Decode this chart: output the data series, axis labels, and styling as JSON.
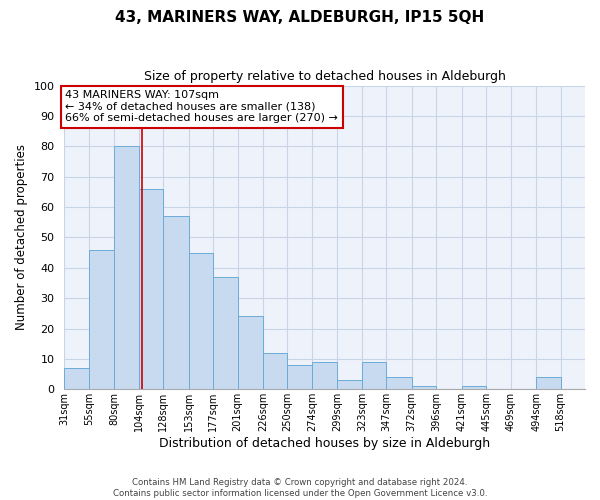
{
  "title": "43, MARINERS WAY, ALDEBURGH, IP15 5QH",
  "subtitle": "Size of property relative to detached houses in Aldeburgh",
  "xlabel": "Distribution of detached houses by size in Aldeburgh",
  "ylabel": "Number of detached properties",
  "footer_line1": "Contains HM Land Registry data © Crown copyright and database right 2024.",
  "footer_line2": "Contains public sector information licensed under the Open Government Licence v3.0.",
  "bin_labels": [
    "31sqm",
    "55sqm",
    "80sqm",
    "104sqm",
    "128sqm",
    "153sqm",
    "177sqm",
    "201sqm",
    "226sqm",
    "250sqm",
    "274sqm",
    "299sqm",
    "323sqm",
    "347sqm",
    "372sqm",
    "396sqm",
    "421sqm",
    "445sqm",
    "469sqm",
    "494sqm",
    "518sqm"
  ],
  "bar_heights": [
    7,
    46,
    80,
    66,
    57,
    45,
    37,
    24,
    12,
    8,
    9,
    3,
    9,
    4,
    1,
    0,
    1,
    0,
    0,
    4,
    0
  ],
  "bar_color": "#c8daf0",
  "bar_edge_color": "#6bacd8",
  "ylim": [
    0,
    100
  ],
  "yticks": [
    0,
    10,
    20,
    30,
    40,
    50,
    60,
    70,
    80,
    90,
    100
  ],
  "annotation_text": "43 MARINERS WAY: 107sqm\n← 34% of detached houses are smaller (138)\n66% of semi-detached houses are larger (270) →",
  "annotation_box_edge": "#cc0000",
  "bin_edges": [
    31,
    55,
    80,
    104,
    128,
    153,
    177,
    201,
    226,
    250,
    274,
    299,
    323,
    347,
    372,
    396,
    421,
    445,
    469,
    494,
    518,
    542
  ],
  "property_line_color": "#cc0000",
  "property_line_x": 107,
  "grid_color": "#c8d4e8",
  "background_color": "#eef2fa"
}
